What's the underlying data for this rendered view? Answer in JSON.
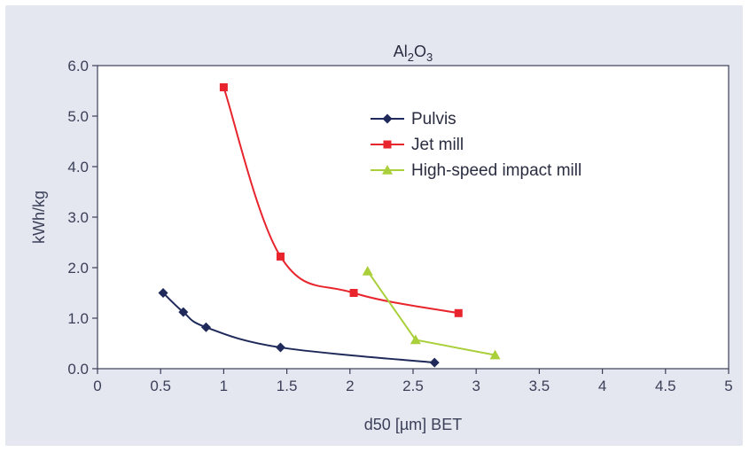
{
  "chart_data": {
    "type": "line",
    "title_main": "Al",
    "title_sub1": "2",
    "title_mid": "O",
    "title_sub2": "3",
    "xlabel": "d50 [µm] BET",
    "ylabel": "kWh/kg",
    "xlim": [
      0,
      5
    ],
    "ylim": [
      0,
      6
    ],
    "x_ticks": [
      "0",
      "0.5",
      "1",
      "1.5",
      "2",
      "2.5",
      "3",
      "3.5",
      "4",
      "4.5",
      "5"
    ],
    "y_ticks": [
      "0.0",
      "1.0",
      "2.0",
      "3.0",
      "4.0",
      "5.0",
      "6.0"
    ],
    "legend_position": "top-right",
    "series": [
      {
        "name": "Pulvis",
        "color": "#1f2a5a",
        "marker": "diamond",
        "points": [
          [
            0.52,
            1.5
          ],
          [
            0.68,
            1.12
          ],
          [
            0.86,
            0.82
          ],
          [
            1.45,
            0.42
          ],
          [
            2.67,
            0.12
          ]
        ]
      },
      {
        "name": "Jet mill",
        "color": "#e8252d",
        "marker": "square",
        "points": [
          [
            1.0,
            5.57
          ],
          [
            1.45,
            2.22
          ],
          [
            2.03,
            1.5
          ],
          [
            2.86,
            1.1
          ]
        ]
      },
      {
        "name": "High-speed impact mill",
        "color": "#a9cf3a",
        "marker": "triangle",
        "points": [
          [
            2.14,
            1.93
          ],
          [
            2.52,
            0.57
          ],
          [
            3.15,
            0.27
          ]
        ]
      }
    ]
  }
}
